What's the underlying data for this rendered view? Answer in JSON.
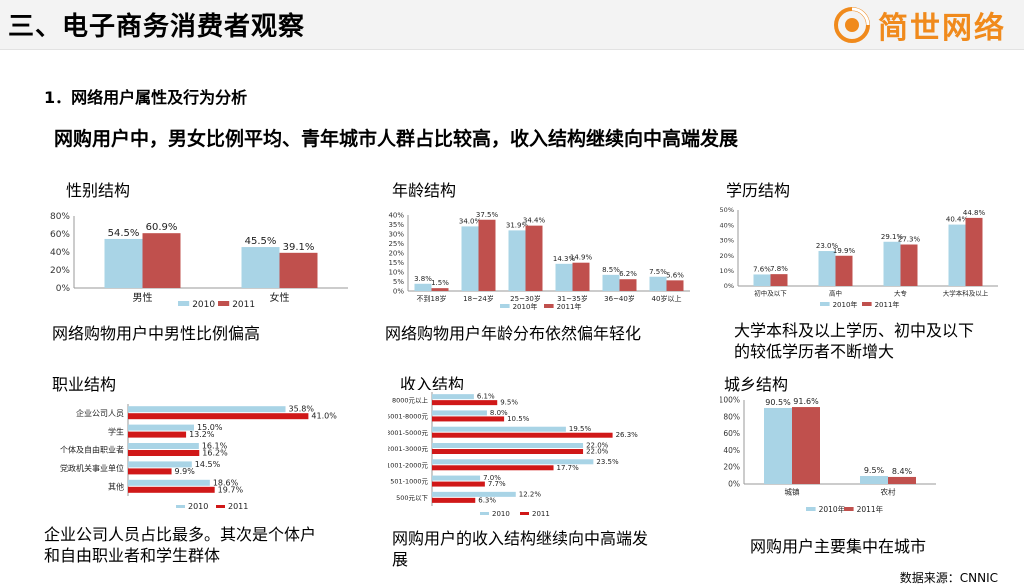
{
  "header": {
    "title": "三、电子商务消费者观察",
    "logo_text": "简世网络"
  },
  "section_title": "1．网络用户属性及行为分析",
  "headline": "网购用户中，男女比例平均、青年城市人群占比较高，收入结构继续向中高端发展",
  "source": "数据来源：CNNIC",
  "colors": {
    "series_2010": "#a9d4e6",
    "series_2011": "#c0504d",
    "series_2011_hbar": "#d01818",
    "logo": "#f08a1c"
  },
  "panels": {
    "gender": {
      "label": "性别结构",
      "caption": "网络购物用户中男性比例偏高"
    },
    "age": {
      "label": "年龄结构",
      "caption": "网络购物用户年龄分布依然偏年轻化"
    },
    "education": {
      "label": "学历结构",
      "caption_line1": "大学本科及以上学历、初中及以下",
      "caption_line2": "的较低学历者不断增大"
    },
    "occupation": {
      "label": "职业结构",
      "caption_line1": "企业公司人员占比最多。其次是个体户",
      "caption_line2": "和自由职业者和学生群体"
    },
    "income": {
      "label": "收入结构",
      "caption_line1": "网购用户的收入结构继续向中高端发",
      "caption_line2": "展"
    },
    "urban": {
      "label": "城乡结构",
      "caption": "网购用户主要集中在城市"
    }
  },
  "chart_data": [
    {
      "id": "gender",
      "type": "bar",
      "categories": [
        "男性",
        "女性"
      ],
      "series": [
        {
          "name": "2010",
          "values": [
            54.5,
            45.5
          ]
        },
        {
          "name": "2011",
          "values": [
            60.9,
            39.1
          ]
        }
      ],
      "ylim": [
        0,
        80
      ],
      "yticks": [
        0,
        20,
        40,
        60,
        80
      ],
      "tick_suffix": "%",
      "labels": [
        [
          "54.5%",
          "45.5%"
        ],
        [
          "60.9%",
          "39.1%"
        ]
      ],
      "legend": [
        "2010",
        "2011"
      ]
    },
    {
      "id": "age",
      "type": "bar",
      "categories": [
        "不到18岁",
        "18~24岁",
        "25~30岁",
        "31~35岁",
        "36~40岁",
        "40岁以上"
      ],
      "series": [
        {
          "name": "2010年",
          "values": [
            3.8,
            34.0,
            31.9,
            14.3,
            8.5,
            7.5
          ]
        },
        {
          "name": "2011年",
          "values": [
            1.5,
            37.5,
            34.4,
            14.9,
            6.2,
            5.6
          ]
        }
      ],
      "ylim": [
        0,
        40
      ],
      "yticks": [
        0,
        5,
        10,
        15,
        20,
        25,
        30,
        35,
        40
      ],
      "tick_suffix": "%",
      "labels": [
        [
          "3.8%",
          "34.0%",
          "31.9%",
          "14.3%",
          "8.5%",
          "7.5%"
        ],
        [
          "1.5%",
          "37.5%",
          "34.4%",
          "14.9%",
          "6.2%",
          "5.6%"
        ]
      ],
      "legend": [
        "2010年",
        "2011年"
      ]
    },
    {
      "id": "education",
      "type": "bar",
      "categories": [
        "初中及以下",
        "高中",
        "大专",
        "大学本科及以上"
      ],
      "series": [
        {
          "name": "2010年",
          "values": [
            7.6,
            23.0,
            29.1,
            40.4
          ]
        },
        {
          "name": "2011年",
          "values": [
            7.8,
            19.9,
            27.3,
            44.8
          ]
        }
      ],
      "ylim": [
        0,
        50
      ],
      "yticks": [
        0,
        10,
        20,
        30,
        40,
        50
      ],
      "tick_suffix": "%",
      "labels": [
        [
          "7.6%",
          "23.0%",
          "29.1%",
          "40.4%"
        ],
        [
          "7.8%",
          "19.9%",
          "27.3%",
          "44.8%"
        ]
      ],
      "legend": [
        "2010年",
        "2011年"
      ]
    },
    {
      "id": "occupation",
      "type": "hbar",
      "categories": [
        "企业公司人员",
        "学生",
        "个体及自由职业者",
        "党政机关事业单位",
        "其他"
      ],
      "series": [
        {
          "name": "2010",
          "values": [
            35.8,
            15.0,
            16.1,
            14.5,
            18.6
          ]
        },
        {
          "name": "2011",
          "values": [
            41.0,
            13.2,
            16.2,
            9.9,
            19.7
          ]
        }
      ],
      "xlim": [
        0,
        45
      ],
      "labels": [
        [
          "35.8%",
          "15.0%",
          "16.1%",
          "14.5%",
          "18.6%"
        ],
        [
          "41.0%",
          "13.2%",
          "16.2%",
          "9.9%",
          "19.7%"
        ]
      ],
      "legend": [
        "2010",
        "2011"
      ]
    },
    {
      "id": "income",
      "type": "hbar",
      "categories": [
        "8000元以上",
        "5001-8000元",
        "3001-5000元",
        "2001-3000元",
        "1001-2000元",
        "501-1000元",
        "500元以下"
      ],
      "series": [
        {
          "name": "2010",
          "values": [
            6.1,
            8.0,
            19.5,
            22.0,
            23.5,
            7.0,
            12.2
          ]
        },
        {
          "name": "2011",
          "values": [
            9.5,
            10.5,
            26.3,
            22.0,
            17.7,
            7.7,
            6.3
          ]
        }
      ],
      "xlim": [
        0,
        30
      ],
      "labels": [
        [
          "6.1%",
          "8.0%",
          "19.5%",
          "22.0%",
          "23.5%",
          "7.0%",
          "12.2%"
        ],
        [
          "9.5%",
          "10.5%",
          "26.3%",
          "22.0%",
          "17.7%",
          "7.7%",
          "6.3%"
        ]
      ],
      "legend": [
        "2010",
        "2011"
      ]
    },
    {
      "id": "urban",
      "type": "bar",
      "categories": [
        "城镇",
        "农村"
      ],
      "series": [
        {
          "name": "2010年",
          "values": [
            90.5,
            9.5
          ]
        },
        {
          "name": "2011年",
          "values": [
            91.6,
            8.4
          ]
        }
      ],
      "ylim": [
        0,
        100
      ],
      "yticks": [
        0,
        20,
        40,
        60,
        80,
        100
      ],
      "tick_suffix": "%",
      "labels": [
        [
          "90.5%",
          "9.5%"
        ],
        [
          "91.6%",
          "8.4%"
        ]
      ],
      "legend": [
        "2010年",
        "2011年"
      ]
    }
  ]
}
